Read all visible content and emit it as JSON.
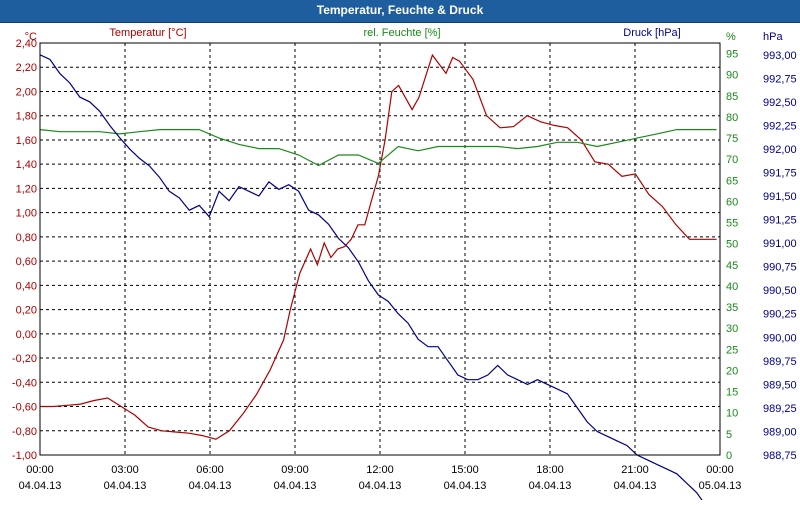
{
  "window": {
    "title": "Temperatur, Feuchte & Druck"
  },
  "colors": {
    "temperature": "#b00000",
    "humidity": "#1a8a1a",
    "pressure": "#00008b",
    "titlebar": "#1f5e9e",
    "grid": "#000000"
  },
  "chart_data": {
    "type": "line",
    "title": "Temperatur, Feuchte & Druck",
    "grid": true,
    "x": {
      "range": [
        "04.04.13 00:00",
        "05.04.13 00:00"
      ],
      "ticks": [
        {
          "time": "00:00",
          "date": "04.04.13"
        },
        {
          "time": "03:00",
          "date": "04.04.13"
        },
        {
          "time": "06:00",
          "date": "04.04.13"
        },
        {
          "time": "09:00",
          "date": "04.04.13"
        },
        {
          "time": "12:00",
          "date": "04.04.13"
        },
        {
          "time": "15:00",
          "date": "04.04.13"
        },
        {
          "time": "18:00",
          "date": "04.04.13"
        },
        {
          "time": "21:00",
          "date": "04.04.13"
        },
        {
          "time": "00:00",
          "date": "05.04.13"
        }
      ]
    },
    "axes": {
      "temperature": {
        "label": "Temperatur [°C]",
        "unit": "°C",
        "range": [
          -1.0,
          2.4
        ],
        "ticks": [
          "-1,00",
          "-0,80",
          "-0,60",
          "-0,40",
          "-0,20",
          "0,00",
          "0,20",
          "0,40",
          "0,60",
          "0,80",
          "1,00",
          "1,20",
          "1,40",
          "1,60",
          "1,80",
          "2,00",
          "2,20",
          "2,40"
        ]
      },
      "humidity": {
        "label": "rel. Feuchte [%]",
        "unit": "%",
        "range": [
          0,
          97.5
        ],
        "ticks": [
          "0",
          "5",
          "10",
          "15",
          "20",
          "25",
          "30",
          "35",
          "40",
          "45",
          "50",
          "55",
          "60",
          "65",
          "70",
          "75",
          "80",
          "85",
          "90",
          "95"
        ]
      },
      "pressure": {
        "label": "Druck [hPa]",
        "unit": "hPa",
        "range": [
          988.75,
          993.125
        ],
        "ticks": [
          "988,75",
          "989,00",
          "989,25",
          "989,50",
          "989,75",
          "990,00",
          "990,25",
          "990,50",
          "990,75",
          "991,00",
          "991,25",
          "991,50",
          "991,75",
          "992,00",
          "992,25",
          "992,50",
          "992,75",
          "993,00"
        ]
      }
    },
    "series": [
      {
        "name": "Temperatur [°C]",
        "axis": "temperature",
        "points": [
          [
            0,
            -0.6
          ],
          [
            0.5,
            -0.6
          ],
          [
            1.0,
            -0.59
          ],
          [
            1.5,
            -0.58
          ],
          [
            2.0,
            -0.55
          ],
          [
            2.5,
            -0.53
          ],
          [
            3.0,
            -0.6
          ],
          [
            3.5,
            -0.67
          ],
          [
            4.0,
            -0.77
          ],
          [
            4.5,
            -0.8
          ],
          [
            5.0,
            -0.81
          ],
          [
            5.5,
            -0.82
          ],
          [
            6.0,
            -0.84
          ],
          [
            6.5,
            -0.87
          ],
          [
            7.0,
            -0.8
          ],
          [
            7.5,
            -0.66
          ],
          [
            8.0,
            -0.5
          ],
          [
            8.5,
            -0.3
          ],
          [
            9.0,
            -0.05
          ],
          [
            9.25,
            0.2
          ],
          [
            9.6,
            0.5
          ],
          [
            10.0,
            0.7
          ],
          [
            10.25,
            0.57
          ],
          [
            10.5,
            0.75
          ],
          [
            10.75,
            0.63
          ],
          [
            11.0,
            0.7
          ],
          [
            11.25,
            0.72
          ],
          [
            11.5,
            0.78
          ],
          [
            11.75,
            0.9
          ],
          [
            12.0,
            0.9
          ],
          [
            12.25,
            1.1
          ],
          [
            12.5,
            1.3
          ],
          [
            12.75,
            1.6
          ],
          [
            13.0,
            2.0
          ],
          [
            13.25,
            2.05
          ],
          [
            13.75,
            1.85
          ],
          [
            14.0,
            1.95
          ],
          [
            14.5,
            2.3
          ],
          [
            15.0,
            2.15
          ],
          [
            15.25,
            2.28
          ],
          [
            15.5,
            2.25
          ],
          [
            16.0,
            2.1
          ],
          [
            16.5,
            1.8
          ],
          [
            17.0,
            1.7
          ],
          [
            17.5,
            1.71
          ],
          [
            18.0,
            1.8
          ],
          [
            18.5,
            1.75
          ],
          [
            19.0,
            1.72
          ],
          [
            19.5,
            1.7
          ],
          [
            20.0,
            1.6
          ],
          [
            20.5,
            1.42
          ],
          [
            21.0,
            1.4
          ],
          [
            21.5,
            1.3
          ],
          [
            22.0,
            1.32
          ],
          [
            22.5,
            1.15
          ],
          [
            23.0,
            1.05
          ],
          [
            23.5,
            0.9
          ],
          [
            24.0,
            0.78
          ],
          [
            24.5,
            0.78
          ],
          [
            25.0,
            0.78
          ]
        ]
      },
      {
        "name": "rel. Feuchte [%]",
        "axis": "humidity",
        "points": [
          [
            0,
            77
          ],
          [
            1,
            76.5
          ],
          [
            2,
            76.5
          ],
          [
            3,
            76.5
          ],
          [
            4,
            76
          ],
          [
            5,
            76.5
          ],
          [
            6,
            77
          ],
          [
            7,
            77
          ],
          [
            8,
            77
          ],
          [
            9,
            75
          ],
          [
            10,
            73.5
          ],
          [
            11,
            72.5
          ],
          [
            12,
            72.5
          ],
          [
            13,
            71
          ],
          [
            14,
            68.5
          ],
          [
            15,
            71
          ],
          [
            16,
            71
          ],
          [
            17,
            69
          ],
          [
            18,
            73
          ],
          [
            19,
            72
          ],
          [
            20,
            73
          ],
          [
            21,
            73
          ],
          [
            22,
            73
          ],
          [
            23,
            73
          ],
          [
            24,
            72.5
          ],
          [
            25,
            73
          ],
          [
            26,
            74
          ],
          [
            27,
            74
          ],
          [
            28,
            73
          ],
          [
            29,
            74
          ],
          [
            30,
            75
          ],
          [
            31,
            76
          ],
          [
            32,
            77
          ],
          [
            33,
            77
          ],
          [
            34,
            77
          ]
        ]
      },
      {
        "name": "Druck [hPa]",
        "axis": "pressure",
        "points": [
          [
            0,
            993.0
          ],
          [
            0.5,
            992.95
          ],
          [
            1.0,
            992.8
          ],
          [
            1.5,
            992.7
          ],
          [
            2.0,
            992.55
          ],
          [
            2.5,
            992.5
          ],
          [
            3.0,
            992.4
          ],
          [
            3.5,
            992.25
          ],
          [
            4.0,
            992.12
          ],
          [
            4.5,
            992.0
          ],
          [
            5.0,
            991.9
          ],
          [
            5.5,
            991.82
          ],
          [
            6.0,
            991.7
          ],
          [
            6.5,
            991.55
          ],
          [
            7.0,
            991.48
          ],
          [
            7.5,
            991.35
          ],
          [
            8.0,
            991.4
          ],
          [
            8.5,
            991.28
          ],
          [
            9.0,
            991.55
          ],
          [
            9.5,
            991.45
          ],
          [
            10.0,
            991.6
          ],
          [
            10.5,
            991.55
          ],
          [
            11.0,
            991.5
          ],
          [
            11.5,
            991.65
          ],
          [
            12.0,
            991.57
          ],
          [
            12.5,
            991.62
          ],
          [
            13.0,
            991.55
          ],
          [
            13.5,
            991.35
          ],
          [
            14.0,
            991.3
          ],
          [
            14.5,
            991.2
          ],
          [
            15.0,
            991.05
          ],
          [
            15.5,
            990.95
          ],
          [
            16.0,
            990.8
          ],
          [
            16.5,
            990.6
          ],
          [
            17.0,
            990.45
          ],
          [
            17.5,
            990.38
          ],
          [
            18.0,
            990.25
          ],
          [
            18.5,
            990.15
          ],
          [
            19.0,
            989.98
          ],
          [
            19.5,
            989.9
          ],
          [
            20.0,
            989.9
          ],
          [
            20.5,
            989.75
          ],
          [
            21.0,
            989.6
          ],
          [
            21.5,
            989.55
          ],
          [
            22.0,
            989.55
          ],
          [
            22.5,
            989.6
          ],
          [
            23.0,
            989.7
          ],
          [
            23.5,
            989.6
          ],
          [
            24.0,
            989.55
          ],
          [
            24.5,
            989.5
          ],
          [
            25.0,
            989.55
          ],
          [
            25.5,
            989.5
          ],
          [
            26.0,
            989.45
          ],
          [
            26.5,
            989.4
          ],
          [
            27.0,
            989.25
          ],
          [
            27.5,
            989.1
          ],
          [
            28.0,
            989.0
          ],
          [
            28.5,
            988.95
          ],
          [
            29.0,
            988.9
          ],
          [
            29.5,
            988.85
          ],
          [
            30.0,
            988.75
          ],
          [
            30.5,
            988.7
          ],
          [
            31.0,
            988.65
          ],
          [
            31.5,
            988.6
          ],
          [
            32.0,
            988.55
          ],
          [
            32.5,
            988.45
          ],
          [
            33.0,
            988.35
          ],
          [
            33.5,
            988.2
          ],
          [
            34.0,
            988.05
          ]
        ]
      }
    ]
  }
}
